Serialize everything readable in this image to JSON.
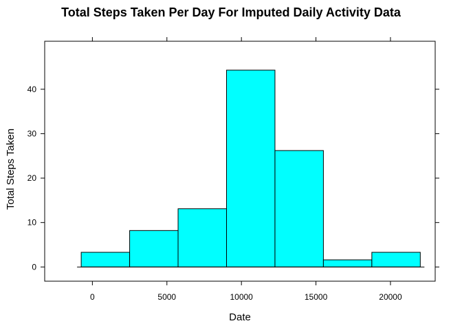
{
  "chart_data": {
    "type": "bar",
    "title": "Total Steps Taken Per Day For Imputed Daily Activity Data",
    "xlabel": "Date",
    "ylabel": "Total Steps Taken",
    "bins": [
      {
        "start": -750,
        "end": 2500,
        "value": 3.3
      },
      {
        "start": 2500,
        "end": 5750,
        "value": 8.2
      },
      {
        "start": 5750,
        "end": 9000,
        "value": 13.1
      },
      {
        "start": 9000,
        "end": 12250,
        "value": 44.3
      },
      {
        "start": 12250,
        "end": 15500,
        "value": 26.2
      },
      {
        "start": 15500,
        "end": 18750,
        "value": 1.6
      },
      {
        "start": 18750,
        "end": 22000,
        "value": 3.3
      }
    ],
    "xlim": [
      -3200,
      23000
    ],
    "ylim": [
      -3.2,
      50.8
    ],
    "x_ticks": [
      0,
      5000,
      10000,
      15000,
      20000
    ],
    "y_ticks": [
      0,
      10,
      20,
      30,
      40
    ],
    "bar_color": "#00FFFF",
    "grid": false,
    "legend": "none"
  }
}
